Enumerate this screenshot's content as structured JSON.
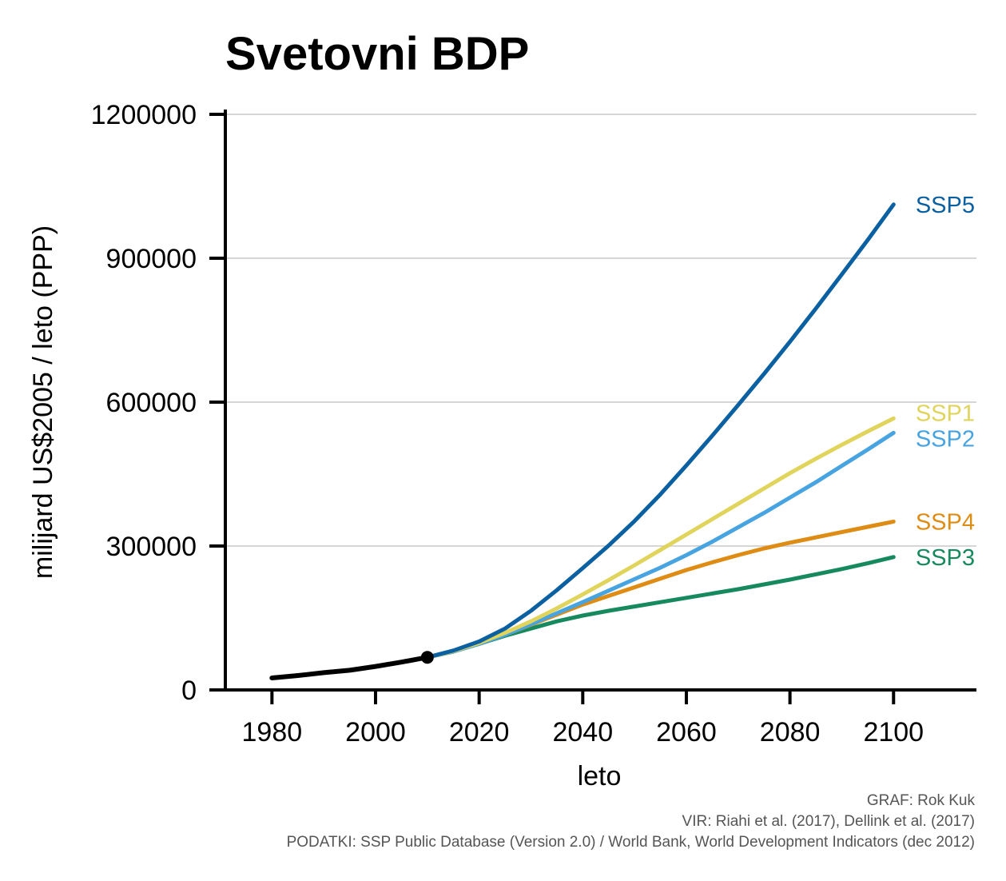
{
  "chart_data": {
    "type": "line",
    "title": "Svetovni BDP",
    "xlabel": "leto",
    "ylabel": "milijard US$2005 / leto (PPP)",
    "xlim": [
      1971,
      2116
    ],
    "ylim": [
      0,
      1200000
    ],
    "xticks": [
      1980,
      2000,
      2020,
      2040,
      2060,
      2080,
      2100
    ],
    "yticks": [
      0,
      300000,
      600000,
      900000,
      1200000
    ],
    "grid": "horizontal",
    "legend": "direct-labels-right",
    "history": {
      "color": "#000000",
      "x": [
        1980,
        1985,
        1990,
        1995,
        2000,
        2005,
        2010
      ],
      "y": [
        25000,
        30000,
        36000,
        41000,
        49000,
        58000,
        68000
      ],
      "marker": {
        "x": 2010,
        "y": 68000
      }
    },
    "series": [
      {
        "name": "SSP5",
        "color": "#0a60a0",
        "x": [
          2010,
          2015,
          2020,
          2025,
          2030,
          2035,
          2040,
          2045,
          2050,
          2055,
          2060,
          2065,
          2070,
          2075,
          2080,
          2085,
          2090,
          2095,
          2100
        ],
        "y": [
          68000,
          82000,
          101000,
          128000,
          165000,
          208000,
          254000,
          301000,
          352000,
          408000,
          468000,
          530000,
          594000,
          659000,
          726000,
          795000,
          866000,
          938000,
          1012000
        ]
      },
      {
        "name": "SSP1",
        "color": "#e0d45c",
        "x": [
          2010,
          2015,
          2020,
          2025,
          2030,
          2035,
          2040,
          2045,
          2050,
          2055,
          2060,
          2065,
          2070,
          2075,
          2080,
          2085,
          2090,
          2095,
          2100
        ],
        "y": [
          68000,
          81000,
          98000,
          119000,
          143000,
          170000,
          199000,
          229000,
          260000,
          292000,
          324000,
          356000,
          388000,
          420000,
          452000,
          482000,
          511000,
          539000,
          566000
        ]
      },
      {
        "name": "SSP2",
        "color": "#48a4e0",
        "x": [
          2010,
          2015,
          2020,
          2025,
          2030,
          2035,
          2040,
          2045,
          2050,
          2055,
          2060,
          2065,
          2070,
          2075,
          2080,
          2085,
          2090,
          2095,
          2100
        ],
        "y": [
          68000,
          80000,
          96000,
          115000,
          137000,
          160000,
          183000,
          207000,
          231000,
          255000,
          281000,
          309000,
          339000,
          369000,
          401000,
          433000,
          467000,
          501000,
          536000
        ]
      },
      {
        "name": "SSP4",
        "color": "#de8c14",
        "x": [
          2010,
          2015,
          2020,
          2025,
          2030,
          2035,
          2040,
          2045,
          2050,
          2055,
          2060,
          2065,
          2070,
          2075,
          2080,
          2085,
          2090,
          2095,
          2100
        ],
        "y": [
          68000,
          80000,
          96000,
          115000,
          136000,
          157000,
          178000,
          196000,
          214000,
          232000,
          250000,
          266000,
          281000,
          295000,
          307000,
          318000,
          329000,
          340000,
          351000
        ]
      },
      {
        "name": "SSP3",
        "color": "#168a5e",
        "x": [
          2010,
          2015,
          2020,
          2025,
          2030,
          2035,
          2040,
          2045,
          2050,
          2055,
          2060,
          2065,
          2070,
          2075,
          2080,
          2085,
          2090,
          2095,
          2100
        ],
        "y": [
          68000,
          80000,
          96000,
          113000,
          128000,
          143000,
          155000,
          165000,
          174000,
          183000,
          192000,
          201000,
          210000,
          220000,
          230000,
          241000,
          252000,
          264000,
          277000
        ]
      }
    ]
  },
  "caption": {
    "line1": "GRAF: Rok Kuk",
    "line2": "VIR: Riahi et al. (2017), Dellink et al. (2017)",
    "line3": "PODATKI: SSP Public Database (Version 2.0) / World Bank, World Development Indicators (dec 2012)"
  }
}
